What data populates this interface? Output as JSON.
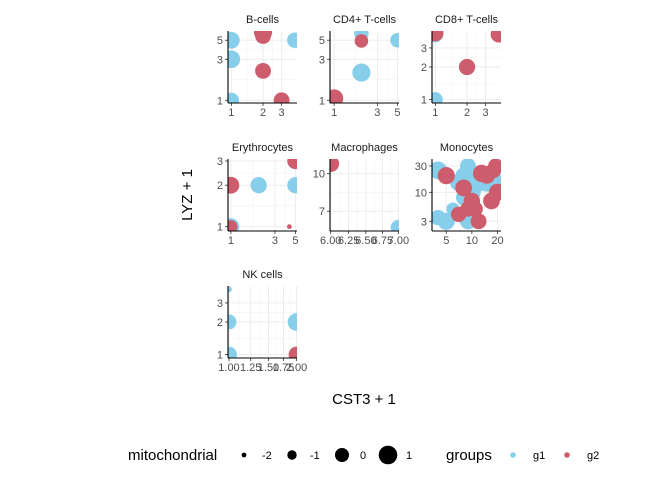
{
  "chart_data": {
    "type": "scatter",
    "layout": "faceted 3x3 grid, scales free, log-scaled axes",
    "xlabel": "CST3 + 1",
    "ylabel": "LYZ + 1",
    "colors": {
      "g1": "#87CEEB",
      "g2": "#CD5C6C"
    },
    "panels": [
      {
        "title": "B-cells",
        "xlim": [
          0.93,
          4.2
        ],
        "ylim": [
          0.93,
          6.4
        ],
        "xticks": [
          1,
          2,
          3
        ],
        "yticks": [
          1,
          3,
          5
        ],
        "points": [
          {
            "x": 1,
            "y": 5,
            "group": "g1",
            "mito": 0.6
          },
          {
            "x": 1,
            "y": 3,
            "group": "g1",
            "mito": 0.8
          },
          {
            "x": 1,
            "y": 1,
            "group": "g1",
            "mito": 0.3
          },
          {
            "x": 4,
            "y": 5,
            "group": "g1",
            "mito": 0.3
          },
          {
            "x": 2,
            "y": 6.2,
            "group": "g2",
            "mito": 0.9
          },
          {
            "x": 2,
            "y": 5.6,
            "group": "g2",
            "mito": 0.4
          },
          {
            "x": 2,
            "y": 2.2,
            "group": "g2",
            "mito": 0.4
          },
          {
            "x": 3,
            "y": 1,
            "group": "g2",
            "mito": 0.4
          }
        ]
      },
      {
        "title": "CD4+ T-cells",
        "xlim": [
          0.9,
          5.2
        ],
        "ylim": [
          0.93,
          6.4
        ],
        "xticks": [
          1,
          3,
          5
        ],
        "yticks": [
          1,
          3,
          5
        ],
        "points": [
          {
            "x": 2,
            "y": 6,
            "group": "g1",
            "mito": 0.1
          },
          {
            "x": 5,
            "y": 5,
            "group": "g1",
            "mito": 0.1
          },
          {
            "x": 2,
            "y": 2.1,
            "group": "g1",
            "mito": 0.9
          },
          {
            "x": 1,
            "y": 1,
            "group": "g1",
            "mito": 0.3
          },
          {
            "x": 2,
            "y": 4.9,
            "group": "g2",
            "mito": -0.1
          },
          {
            "x": 1,
            "y": 1.05,
            "group": "g2",
            "mito": 0.9
          }
        ]
      },
      {
        "title": "CD8+ T-cells",
        "xlim": [
          0.93,
          4.2
        ],
        "ylim": [
          0.93,
          4.3
        ],
        "xticks": [
          1,
          2,
          3
        ],
        "yticks": [
          1,
          2,
          3
        ],
        "points": [
          {
            "x": 1,
            "y": 4,
            "group": "g1",
            "mito": 0.4
          },
          {
            "x": 1,
            "y": 1,
            "group": "g1",
            "mito": 0.2
          },
          {
            "x": 1,
            "y": 4.1,
            "group": "g2",
            "mito": 0.5
          },
          {
            "x": 4,
            "y": 4,
            "group": "g2",
            "mito": 0.5
          },
          {
            "x": 2,
            "y": 2,
            "group": "g2",
            "mito": 0.5
          }
        ]
      },
      {
        "title": "Erythrocytes",
        "xlim": [
          0.93,
          5.2
        ],
        "ylim": [
          0.93,
          3.1
        ],
        "xticks": [
          1,
          3,
          5
        ],
        "yticks": [
          1,
          2,
          3
        ],
        "points": [
          {
            "x": 2,
            "y": 2,
            "group": "g1",
            "mito": 0.5
          },
          {
            "x": 5,
            "y": 2,
            "group": "g1",
            "mito": 0.5
          },
          {
            "x": 1,
            "y": 1,
            "group": "g1",
            "mito": 0.6
          },
          {
            "x": 1,
            "y": 2,
            "group": "g2",
            "mito": 0.6
          },
          {
            "x": 5,
            "y": 3,
            "group": "g2",
            "mito": 0.5
          },
          {
            "x": 1,
            "y": 1,
            "group": "g2",
            "mito": -0.2
          },
          {
            "x": 4.3,
            "y": 1,
            "group": "g2",
            "mito": -2
          }
        ]
      },
      {
        "title": "Macrophages",
        "xlim": [
          5.99,
          7.01
        ],
        "ylim": [
          5.8,
          11.5
        ],
        "xticks": [
          6.0,
          6.25,
          6.5,
          6.75,
          7.0
        ],
        "xtick_labels": [
          "6.00",
          "6.25",
          "6.50",
          "6.75",
          "7.00"
        ],
        "yticks": [
          7,
          10
        ],
        "points": [
          {
            "x": 6.0,
            "y": 11,
            "group": "g2",
            "mito": 0.6
          },
          {
            "x": 7.0,
            "y": 6,
            "group": "g1",
            "mito": 0.3
          }
        ]
      },
      {
        "title": "Monocytes",
        "xlim": [
          3.4,
          22
        ],
        "ylim": [
          2.0,
          40
        ],
        "xticks": [
          5,
          10,
          20
        ],
        "yticks": [
          3,
          10,
          30
        ],
        "points": [
          {
            "x": 4,
            "y": 25,
            "group": "g1",
            "mito": 0.8
          },
          {
            "x": 5,
            "y": 3,
            "group": "g1",
            "mito": 0.7
          },
          {
            "x": 4,
            "y": 3.5,
            "group": "g1",
            "mito": 0.3
          },
          {
            "x": 6,
            "y": 5,
            "group": "g1",
            "mito": -0.2
          },
          {
            "x": 7,
            "y": 15,
            "group": "g1",
            "mito": 0.7
          },
          {
            "x": 8,
            "y": 20,
            "group": "g1",
            "mito": 0.5
          },
          {
            "x": 9,
            "y": 30,
            "group": "g1",
            "mito": 0.4
          },
          {
            "x": 10,
            "y": 10,
            "group": "g1",
            "mito": 0.8
          },
          {
            "x": 11,
            "y": 14,
            "group": "g1",
            "mito": 1.0
          },
          {
            "x": 12,
            "y": 18,
            "group": "g1",
            "mito": 0.6
          },
          {
            "x": 15,
            "y": 15,
            "group": "g1",
            "mito": 0.9
          },
          {
            "x": 18,
            "y": 16,
            "group": "g1",
            "mito": 1.0
          },
          {
            "x": 16,
            "y": 20,
            "group": "g1",
            "mito": 0.7
          },
          {
            "x": 9,
            "y": 3,
            "group": "g1",
            "mito": 0.5
          },
          {
            "x": 8,
            "y": 8,
            "group": "g1",
            "mito": 0.3
          },
          {
            "x": 5,
            "y": 20,
            "group": "g2",
            "mito": 0.7
          },
          {
            "x": 7,
            "y": 4,
            "group": "g2",
            "mito": 0.3
          },
          {
            "x": 8,
            "y": 12,
            "group": "g2",
            "mito": 0.6
          },
          {
            "x": 9,
            "y": 5,
            "group": "g2",
            "mito": 0.3
          },
          {
            "x": 10,
            "y": 7,
            "group": "g2",
            "mito": 0.5
          },
          {
            "x": 12,
            "y": 3,
            "group": "g2",
            "mito": 0.4
          },
          {
            "x": 13,
            "y": 22,
            "group": "g2",
            "mito": 0.7
          },
          {
            "x": 15,
            "y": 20,
            "group": "g2",
            "mito": 0.5
          },
          {
            "x": 17,
            "y": 7,
            "group": "g2",
            "mito": 0.6
          },
          {
            "x": 18,
            "y": 25,
            "group": "g2",
            "mito": 0.3
          },
          {
            "x": 20,
            "y": 10,
            "group": "g2",
            "mito": 0.7
          },
          {
            "x": 19,
            "y": 30,
            "group": "g2",
            "mito": 0.2
          },
          {
            "x": 11,
            "y": 5,
            "group": "g2",
            "mito": 0.2
          }
        ]
      },
      {
        "title": "NK cells",
        "xlim": [
          0.99,
          2.01
        ],
        "ylim": [
          0.93,
          4.3
        ],
        "xticks": [
          1.0,
          1.25,
          1.5,
          1.75,
          2.0
        ],
        "xtick_labels": [
          "1.00",
          "1.25",
          "1.50",
          "1.75",
          "2.00"
        ],
        "yticks": [
          1,
          2,
          3
        ],
        "points": [
          {
            "x": 1.0,
            "y": 4,
            "group": "g1",
            "mito": -1.8
          },
          {
            "x": 1.0,
            "y": 2,
            "group": "g1",
            "mito": 0.2
          },
          {
            "x": 1.0,
            "y": 1,
            "group": "g1",
            "mito": 0.4
          },
          {
            "x": 2.0,
            "y": 2,
            "group": "g1",
            "mito": 0.8
          },
          {
            "x": 2.0,
            "y": 1,
            "group": "g2",
            "mito": 0.4
          }
        ]
      }
    ],
    "legend": {
      "size": {
        "title": "mitochondrial",
        "values": [
          -2,
          -1,
          0,
          1
        ],
        "labels": [
          "-2",
          "-1",
          "0",
          "1"
        ]
      },
      "color": {
        "title": "groups",
        "entries": [
          "g1",
          "g2"
        ]
      },
      "position": "bottom"
    }
  }
}
